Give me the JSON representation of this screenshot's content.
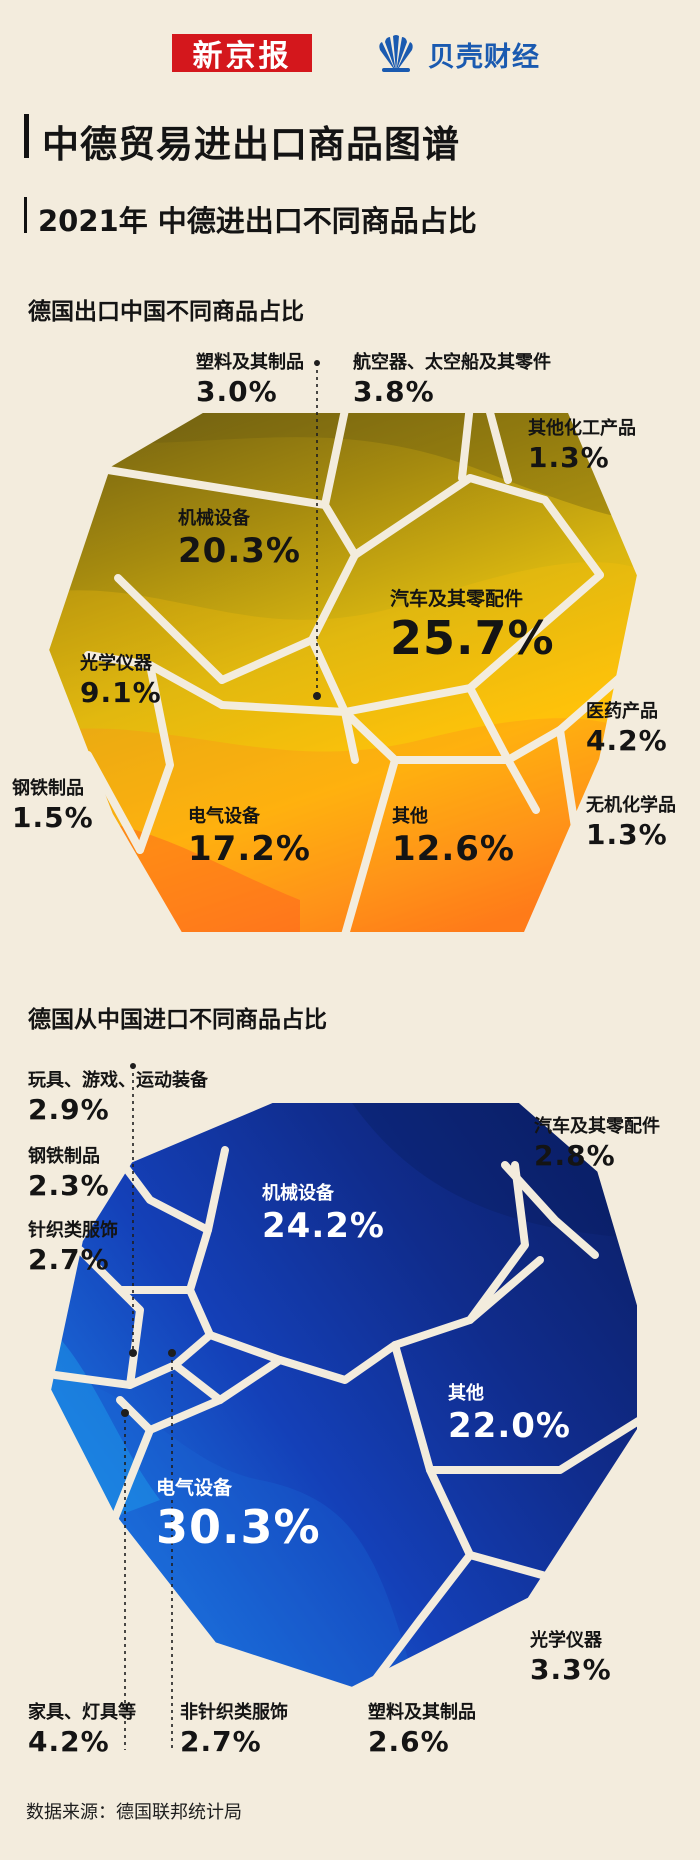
{
  "header": {
    "logo_xinjingbao": "新京报",
    "logo_beike": "贝壳财经",
    "main_title": "中德贸易进出口商品图谱",
    "sub_title": "2021年 中德进出口不同商品占比"
  },
  "colors": {
    "background": "#f3ecdd",
    "export_palette": [
      "#6b5b12",
      "#a58a0f",
      "#d8b510",
      "#ffc20a",
      "#ff8a1c",
      "#ff5a1e"
    ],
    "import_palette": [
      "#0a1c5e",
      "#102c8c",
      "#1440b8",
      "#1a6ad8",
      "#1ea7f0"
    ]
  },
  "chart_data": [
    {
      "type": "treemap",
      "title": "德国出口中国不同商品占比",
      "unit": "%",
      "items": [
        {
          "name": "塑料及其制品",
          "value": 3.0,
          "display": "3.0%"
        },
        {
          "name": "航空器、太空船及其零件",
          "value": 3.8,
          "display": "3.8%"
        },
        {
          "name": "其他化工产品",
          "value": 1.3,
          "display": "1.3%"
        },
        {
          "name": "机械设备",
          "value": 20.3,
          "display": "20.3%"
        },
        {
          "name": "汽车及其零配件",
          "value": 25.7,
          "display": "25.7%"
        },
        {
          "name": "光学仪器",
          "value": 9.1,
          "display": "9.1%"
        },
        {
          "name": "医药产品",
          "value": 4.2,
          "display": "4.2%"
        },
        {
          "name": "钢铁制品",
          "value": 1.5,
          "display": "1.5%"
        },
        {
          "name": "电气设备",
          "value": 17.2,
          "display": "17.2%"
        },
        {
          "name": "其他",
          "value": 12.6,
          "display": "12.6%"
        },
        {
          "name": "无机化学品",
          "value": 1.3,
          "display": "1.3%"
        }
      ]
    },
    {
      "type": "treemap",
      "title": "德国从中国进口不同商品占比",
      "unit": "%",
      "items": [
        {
          "name": "玩具、游戏、运动装备",
          "value": 2.9,
          "display": "2.9%"
        },
        {
          "name": "汽车及其零配件",
          "value": 2.8,
          "display": "2.8%"
        },
        {
          "name": "钢铁制品",
          "value": 2.3,
          "display": "2.3%"
        },
        {
          "name": "机械设备",
          "value": 24.2,
          "display": "24.2%"
        },
        {
          "name": "针织类服饰",
          "value": 2.7,
          "display": "2.7%"
        },
        {
          "name": "其他",
          "value": 22.0,
          "display": "22.0%"
        },
        {
          "name": "电气设备",
          "value": 30.3,
          "display": "30.3%"
        },
        {
          "name": "光学仪器",
          "value": 3.3,
          "display": "3.3%"
        },
        {
          "name": "家具、灯具等",
          "value": 4.2,
          "display": "4.2%"
        },
        {
          "name": "非针织类服饰",
          "value": 2.7,
          "display": "2.7%"
        },
        {
          "name": "塑料及其制品",
          "value": 2.6,
          "display": "2.6%"
        }
      ]
    }
  ],
  "footer": {
    "source": "数据来源：德国联邦统计局"
  }
}
